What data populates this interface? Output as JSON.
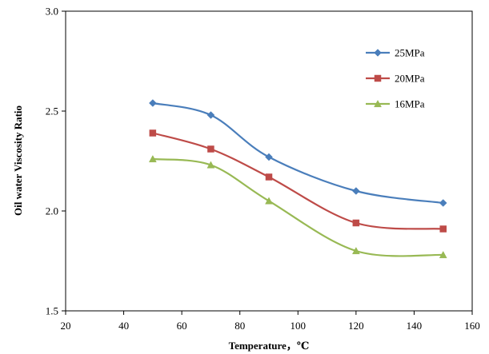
{
  "chart_data": {
    "type": "line",
    "title": "",
    "xlabel": "Temperature，℃",
    "ylabel": "Oil water Viscosity Ratio",
    "xlim": [
      20,
      160
    ],
    "ylim": [
      1.5,
      3.0
    ],
    "xticks": [
      20,
      40,
      60,
      80,
      100,
      120,
      140,
      160
    ],
    "yticks": [
      1.5,
      2.0,
      2.5,
      3.0
    ],
    "ytick_labels": [
      "1.5",
      "2.0",
      "2.5",
      "3.0"
    ],
    "grid": false,
    "legend_position": "right",
    "x": [
      50,
      70,
      90,
      120,
      150
    ],
    "series": [
      {
        "name": "25MPa",
        "color": "#4a7ebb",
        "marker": "diamond",
        "values": [
          2.54,
          2.48,
          2.27,
          2.1,
          2.04
        ]
      },
      {
        "name": "20MPa",
        "color": "#be4b48",
        "marker": "square",
        "values": [
          2.39,
          2.31,
          2.17,
          1.94,
          1.91
        ]
      },
      {
        "name": "16MPa",
        "color": "#98b954",
        "marker": "triangle",
        "values": [
          2.26,
          2.23,
          2.05,
          1.8,
          1.78
        ]
      }
    ]
  }
}
